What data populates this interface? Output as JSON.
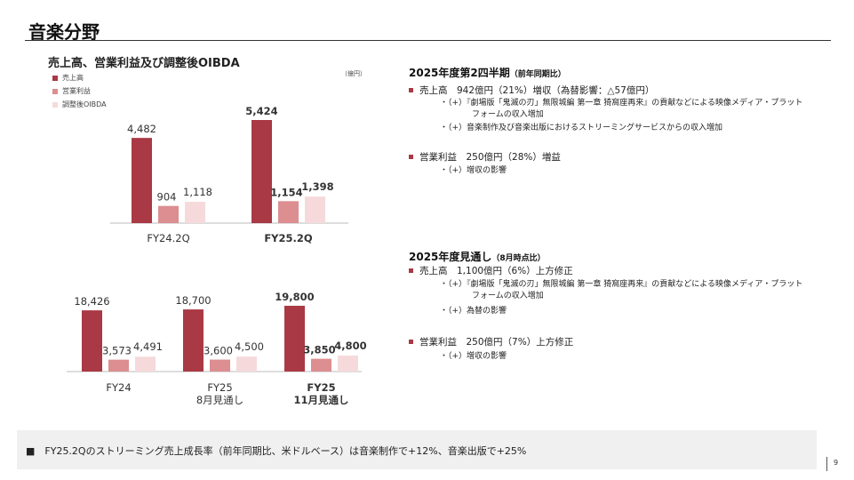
{
  "page": {
    "title": "音楽分野",
    "page_number": "9"
  },
  "colors": {
    "revenue": "#a93944",
    "operating_income": "#dc8e90",
    "adjusted_oibda": "#f6dadb",
    "bullet": "#a93944"
  },
  "left_panel": {
    "title": "売上高、営業利益及び調整後OIBDA",
    "unit": "（億円）",
    "legend": [
      "売上高",
      "営業利益",
      "調整後OIBDA"
    ]
  },
  "chart_data": [
    {
      "type": "bar",
      "categories": [
        "FY24.2Q",
        "FY25.2Q"
      ],
      "category_bold": [
        false,
        true
      ],
      "series": [
        {
          "name": "売上高",
          "values": [
            4482,
            5424
          ],
          "labels": [
            "4,482",
            "5,424"
          ]
        },
        {
          "name": "営業利益",
          "values": [
            904,
            1154
          ],
          "labels": [
            "904",
            "1,154"
          ]
        },
        {
          "name": "調整後OIBDA",
          "values": [
            1118,
            1398
          ],
          "labels": [
            "1,118",
            "1,398"
          ]
        }
      ]
    },
    {
      "type": "bar",
      "categories": [
        [
          "FY24"
        ],
        [
          "FY25",
          "8月見通し"
        ],
        [
          "FY25",
          "11月見通し"
        ]
      ],
      "category_bold": [
        false,
        false,
        true
      ],
      "series": [
        {
          "name": "売上高",
          "values": [
            18426,
            18700,
            19800
          ],
          "labels": [
            "18,426",
            "18,700",
            "19,800"
          ]
        },
        {
          "name": "営業利益",
          "values": [
            3573,
            3600,
            3850
          ],
          "labels": [
            "3,573",
            "3,600",
            "3,850"
          ]
        },
        {
          "name": "調整後OIBDA",
          "values": [
            4491,
            4500,
            4800
          ],
          "labels": [
            "4,491",
            "4,500",
            "4,800"
          ]
        }
      ]
    }
  ],
  "q2": {
    "heading": "2025年度第2四半期",
    "heading_note": "（前年同期比）",
    "revenue": {
      "text": "売上高　942億円（21%）増収（為替影響：△57億円）",
      "items": [
        [
          "・（+）『劇場版「鬼滅の刃」無限城編 第一章 猗窩座再来』の貢献などによる映像メディア・プラット",
          "フォームの収入増加"
        ],
        [
          "・（+）音楽制作及び音楽出版におけるストリーミングサービスからの収入増加"
        ]
      ]
    },
    "oi": {
      "text": "営業利益　250億円（28%）増益",
      "items": [
        [
          "・（+）増収の影響"
        ]
      ]
    }
  },
  "forecast": {
    "heading": "2025年度見通し",
    "heading_note": "（8月時点比）",
    "revenue": {
      "text": "売上高　1,100億円（6%）上方修正",
      "items": [
        [
          "・（+）『劇場版「鬼滅の刃」無限城編 第一章 猗窩座再来』の貢献などによる映像メディア・プラット",
          "フォームの収入増加"
        ],
        [
          "・（+）為替の影響"
        ]
      ]
    },
    "oi": {
      "text": "営業利益　250億円（7%）上方修正",
      "items": [
        [
          "・（+）増収の影響"
        ]
      ]
    }
  },
  "footer": {
    "text": "■　FY25.2Qのストリーミング売上成長率（前年同期比、米ドルベース）は音楽制作で+12%、音楽出版で+25%"
  }
}
